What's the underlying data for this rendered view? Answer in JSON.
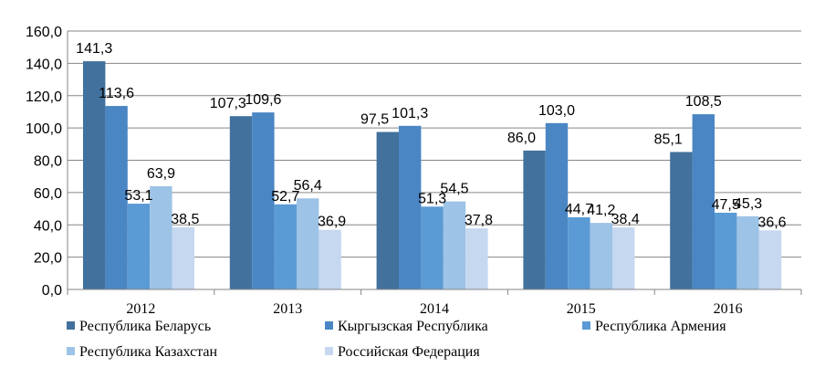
{
  "chart_data": {
    "type": "bar",
    "categories": [
      "2012",
      "2013",
      "2014",
      "2015",
      "2016"
    ],
    "series": [
      {
        "name": "Республика Беларусь",
        "values": [
          141.3,
          107.3,
          97.5,
          86.0,
          85.1
        ],
        "color": "#41719C",
        "labels": [
          "141,3",
          "107,3",
          "97,5",
          "86,0",
          "85,1"
        ]
      },
      {
        "name": "Кыргызская Республика",
        "values": [
          113.6,
          109.6,
          101.3,
          103.0,
          108.5
        ],
        "color": "#4A86C3",
        "labels": [
          "113,6",
          "109,6",
          "101,3",
          "103,0",
          "108,5"
        ]
      },
      {
        "name": "Республика Армения",
        "values": [
          53.1,
          52.7,
          51.3,
          44.7,
          47.5
        ],
        "color": "#5B9BD5",
        "labels": [
          "53,1",
          "52,7",
          "51,3",
          "44,7",
          "47,5"
        ]
      },
      {
        "name": "Республика Казахстан",
        "values": [
          63.9,
          56.4,
          54.5,
          41.2,
          45.3
        ],
        "color": "#9DC3E6",
        "labels": [
          "63,9",
          "56,4",
          "54,5",
          "41,2",
          "45,3"
        ]
      },
      {
        "name": "Российская Федерация",
        "values": [
          38.5,
          36.9,
          37.8,
          38.4,
          36.6
        ],
        "color": "#C5D8F0",
        "labels": [
          "38,5",
          "36,9",
          "37,8",
          "38,4",
          "36,6"
        ]
      }
    ],
    "ylim": [
      0,
      160
    ],
    "yticks": [
      "0,0",
      "20,0",
      "40,0",
      "60,0",
      "80,0",
      "100,0",
      "120,0",
      "140,0",
      "160,0"
    ],
    "grid": true,
    "legend_position": "bottom"
  }
}
